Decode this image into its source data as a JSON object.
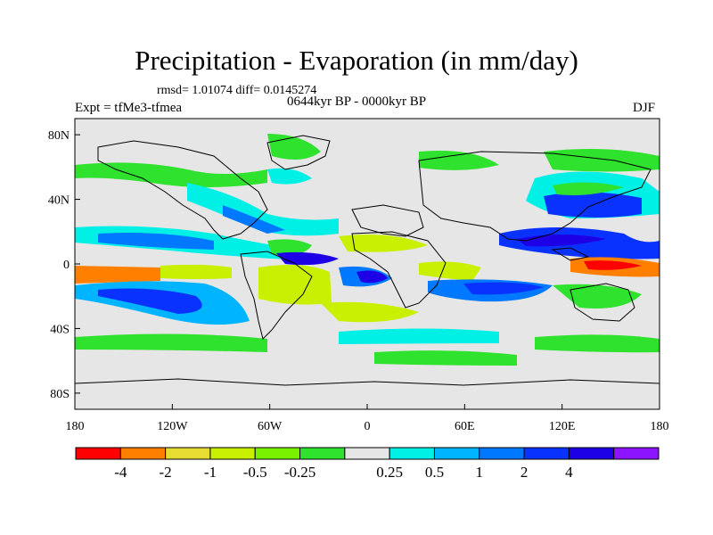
{
  "figure": {
    "title": "Precipitation - Evaporation (in mm/day)",
    "stats": "rmsd= 1.01074 diff= 0.0145274",
    "period": "0644kyr BP - 0000kyr BP",
    "experiment": "Expt = tfMe3-tfmea",
    "season": "DJF"
  },
  "axes": {
    "y_ticks": [
      {
        "label": "80N",
        "lat": 80
      },
      {
        "label": "40N",
        "lat": 40
      },
      {
        "label": "0",
        "lat": 0
      },
      {
        "label": "40S",
        "lat": -40
      },
      {
        "label": "80S",
        "lat": -80
      }
    ],
    "x_ticks": [
      {
        "label": "180",
        "lon": -180
      },
      {
        "label": "120W",
        "lon": -120
      },
      {
        "label": "60W",
        "lon": -60
      },
      {
        "label": "0",
        "lon": 0
      },
      {
        "label": "60E",
        "lon": 60
      },
      {
        "label": "120E",
        "lon": 120
      },
      {
        "label": "180",
        "lon": 180
      }
    ],
    "lon_range": [
      -180,
      180
    ],
    "lat_range": [
      -90,
      90
    ]
  },
  "colorbar": {
    "colors": [
      "#ff0000",
      "#ff8000",
      "#e6dc32",
      "#c8f000",
      "#78f000",
      "#2ee22e",
      "#e6e6e6",
      "#00f0e6",
      "#00b4ff",
      "#0078ff",
      "#0a32ff",
      "#1e00e6",
      "#8c14ff"
    ],
    "labels": [
      "-4",
      "-2",
      "-1",
      "-0.5",
      "-0.25",
      "0.25",
      "0.5",
      "1",
      "2",
      "4"
    ]
  }
}
